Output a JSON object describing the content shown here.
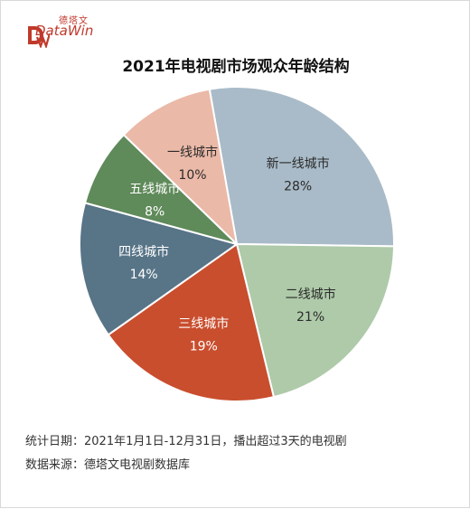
{
  "brand": {
    "name_cn": "德塔文",
    "name_en": "DataWin",
    "color": "#c0392b"
  },
  "chart_data": {
    "type": "pie",
    "title": "2021年电视剧市场观众年龄结构",
    "slices": [
      {
        "label": "新一线城市",
        "value": 28,
        "display": "28%",
        "color": "#a9bbc8"
      },
      {
        "label": "二线城市",
        "value": 21,
        "display": "21%",
        "color": "#aecaa9"
      },
      {
        "label": "三线城市",
        "value": 19,
        "display": "19%",
        "color": "#c94e2e"
      },
      {
        "label": "四线城市",
        "value": 14,
        "display": "14%",
        "color": "#587487"
      },
      {
        "label": "五线城市",
        "value": 8,
        "display": "8%",
        "color": "#5f8a5a"
      },
      {
        "label": "一线城市",
        "value": 10,
        "display": "10%",
        "color": "#ebb9a8"
      }
    ],
    "legend": "none"
  },
  "footnotes": {
    "stats_period": "统计日期：2021年1月1日-12月31日，播出超过3天的电视剧",
    "source": "数据来源：德塔文电视剧数据库"
  }
}
